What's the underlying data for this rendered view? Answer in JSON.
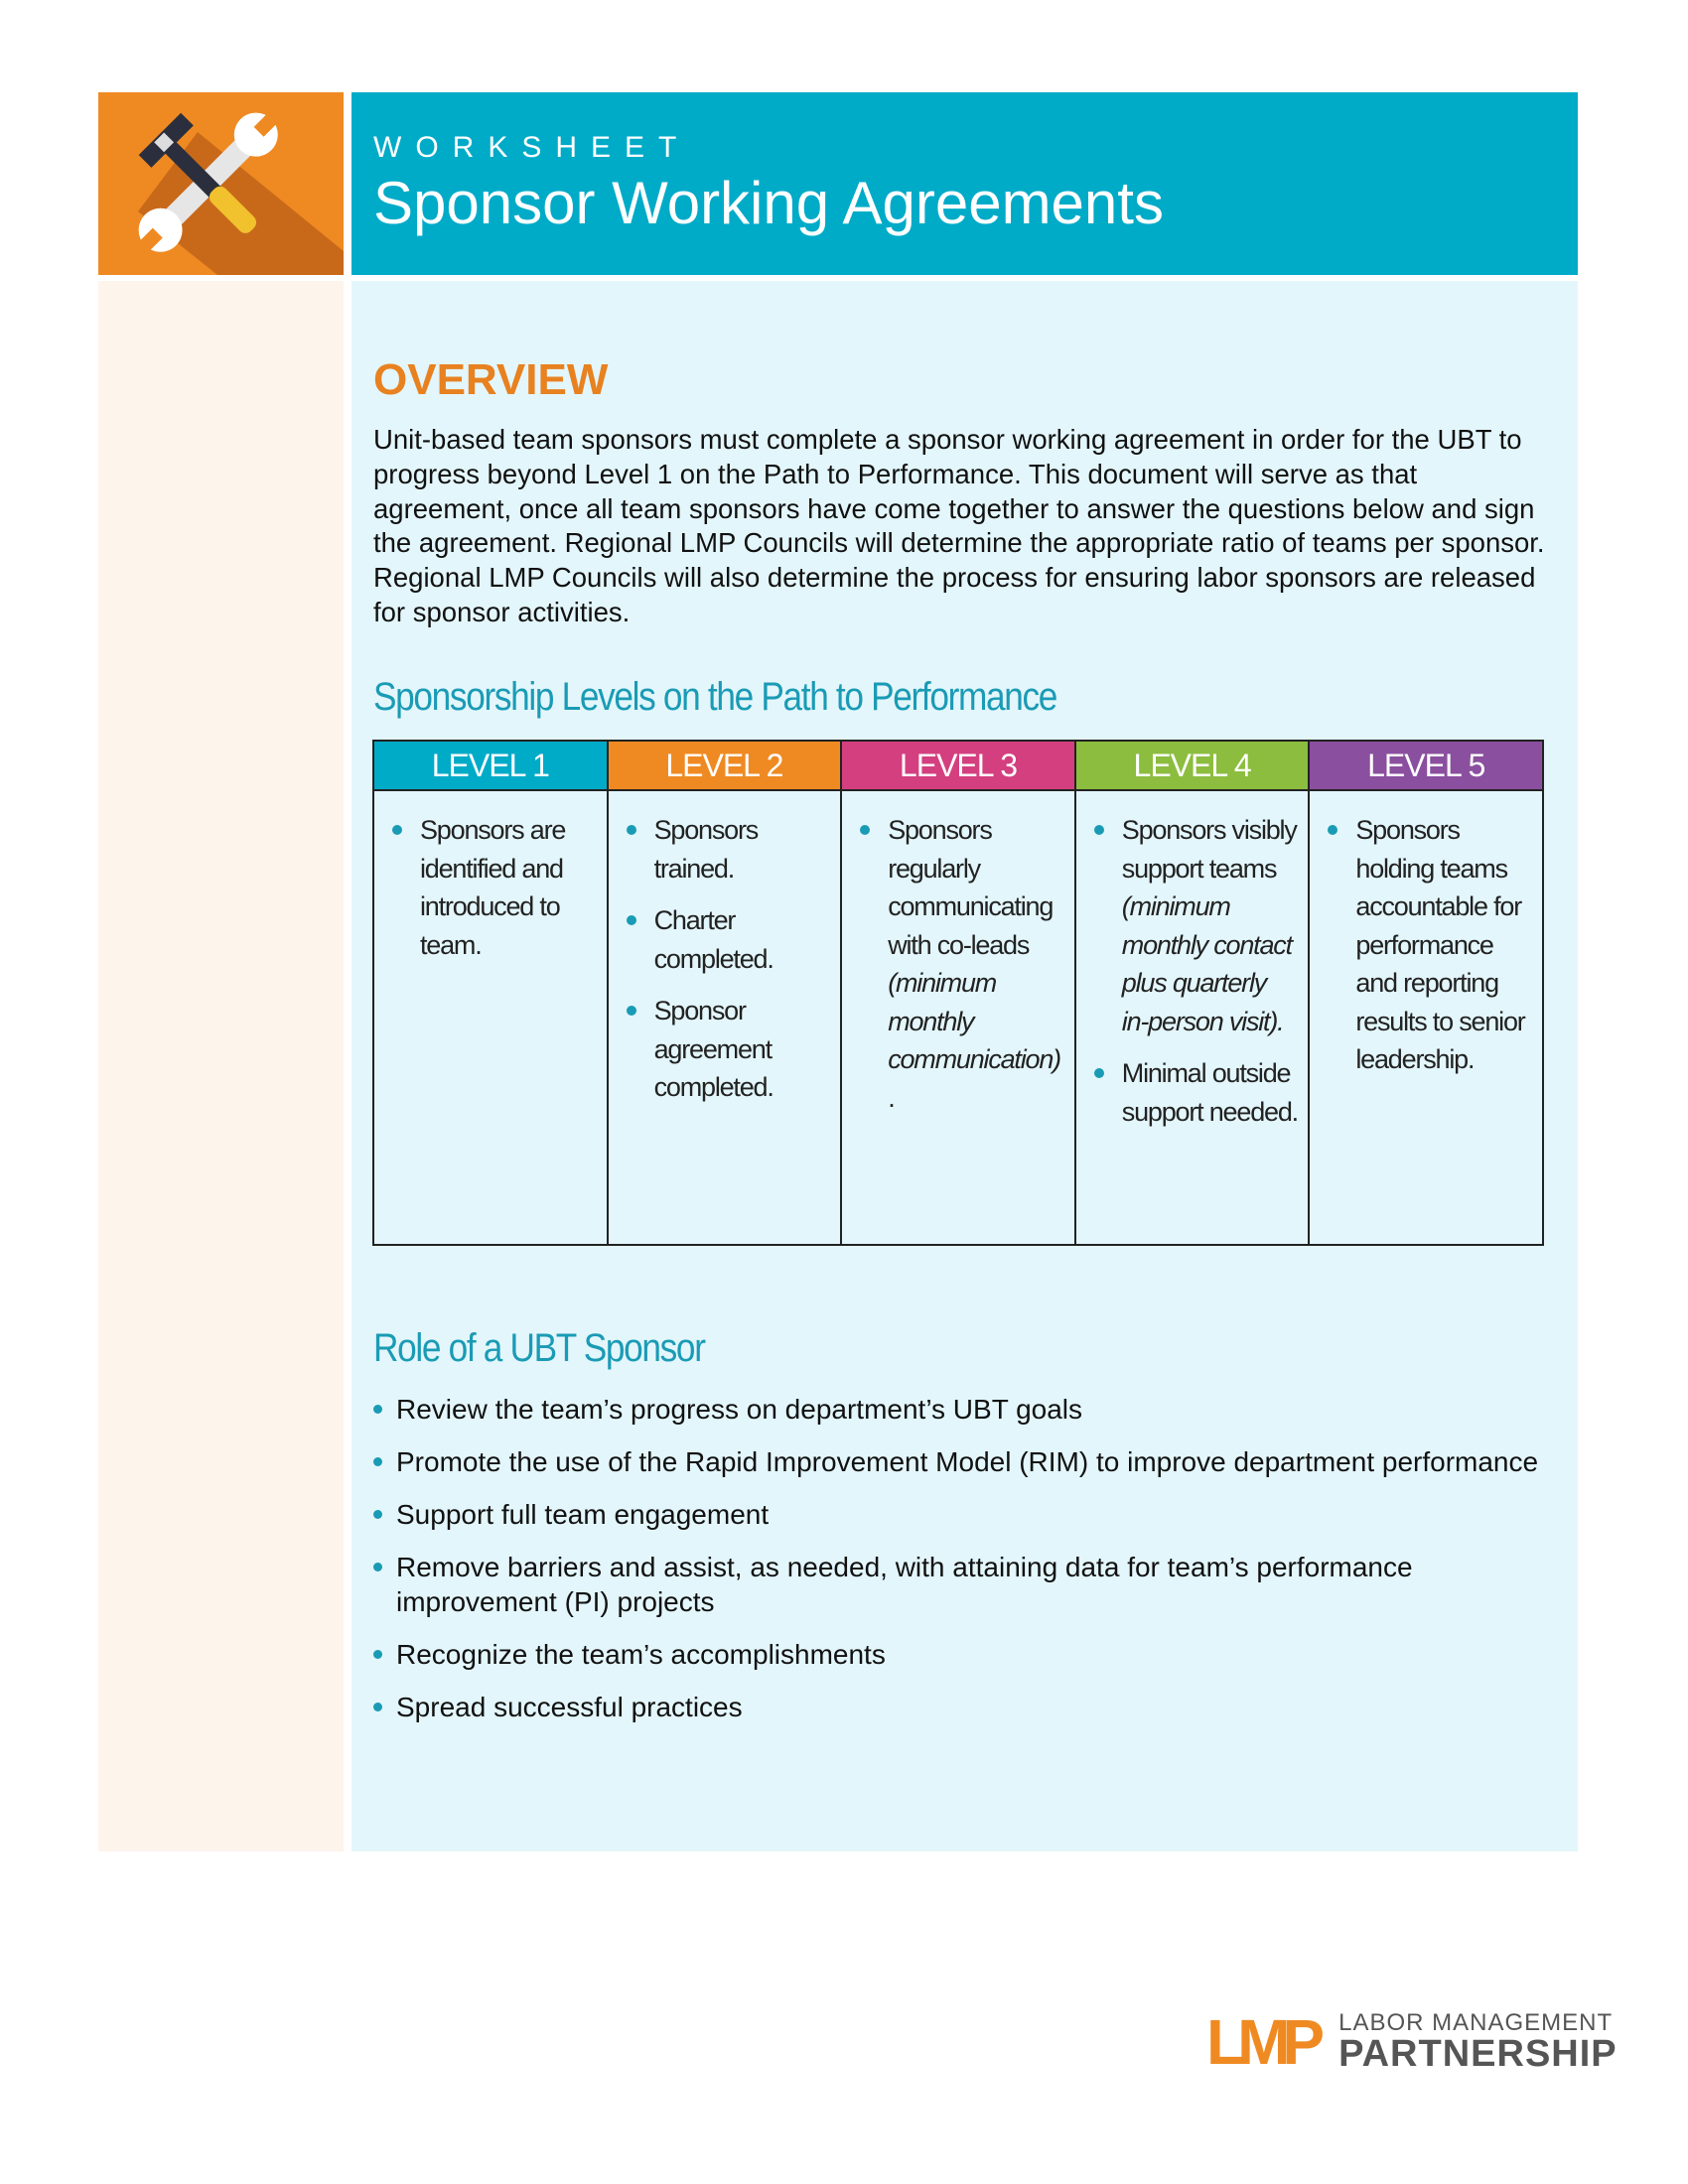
{
  "header": {
    "kicker": "WORKSHEET",
    "title": "Sponsor Working Agreements",
    "icon": "wrench-hammer-icon"
  },
  "overview": {
    "heading": "OVERVIEW",
    "text": "Unit-based team sponsors must complete a sponsor working agreement in order for the UBT to progress beyond Level 1 on the Path to Performance. This document will serve as that agreement, once all team sponsors have come together to answer the questions below and sign the agreement. Regional LMP Councils will determine the appropriate ratio of teams per sponsor. Regional LMP Councils will also determine the process for ensuring labor sponsors are released for sponsor activities."
  },
  "levels": {
    "heading": "Sponsorship Levels on the Path to Performance",
    "columns": [
      {
        "label": "LEVEL 1",
        "color": "#00abc8",
        "items": [
          {
            "text": "Sponsors are identified and introduced to team.",
            "italic": ""
          }
        ]
      },
      {
        "label": "LEVEL 2",
        "color": "#ef8a22",
        "items": [
          {
            "text": "Sponsors trained.",
            "italic": ""
          },
          {
            "text": "Charter completed.",
            "italic": ""
          },
          {
            "text": "Sponsor agreement completed.",
            "italic": ""
          }
        ]
      },
      {
        "label": "LEVEL 3",
        "color": "#d43f7f",
        "items": [
          {
            "text": "Sponsors regularly communicating with co-leads",
            "italic": "(minimum monthly communication)",
            "after": "."
          }
        ]
      },
      {
        "label": "LEVEL 4",
        "color": "#8cbd3f",
        "items": [
          {
            "text": "Sponsors visibly support teams",
            "italic": "(minimum monthly contact plus quarterly in-person visit)."
          },
          {
            "text": "Minimal outside support needed.",
            "italic": ""
          }
        ]
      },
      {
        "label": "LEVEL 5",
        "color": "#8a4f9e",
        "items": [
          {
            "text": "Sponsors holding teams accountable for performance and reporting results to senior leadership.",
            "italic": ""
          }
        ]
      }
    ]
  },
  "role": {
    "heading": "Role of a UBT Sponsor",
    "items": [
      "Review the team’s progress on department’s UBT goals",
      "Promote the use of the Rapid Improvement Model (RIM) to improve department performance",
      "Support full team engagement",
      "Remove barriers and assist, as needed, with attaining data for team’s performance improvement (PI) projects",
      "Recognize the team’s accomplishments",
      "Spread successful practices"
    ]
  },
  "logo": {
    "mark": "LMP",
    "line1": "LABOR MANAGEMENT",
    "line2": "PARTNERSHIP"
  }
}
